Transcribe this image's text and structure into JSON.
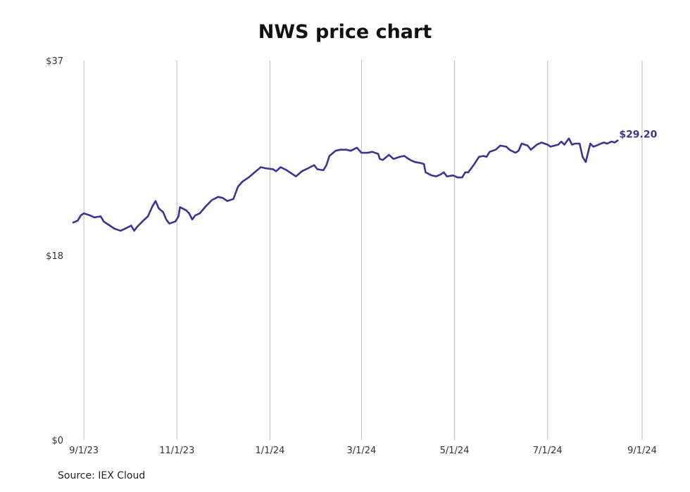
{
  "chart_data": {
    "type": "line",
    "title": "NWS price chart",
    "source": "Source: IEX Cloud",
    "xlabel": "",
    "ylabel": "",
    "ylim": [
      0,
      37
    ],
    "xlim": [
      "2023-08-25",
      "2024-09-07"
    ],
    "y_ticks": [
      0,
      18,
      37
    ],
    "y_tick_labels": [
      "$0",
      "$18",
      "$37"
    ],
    "x_ticks": [
      "2023-09-01",
      "2023-11-01",
      "2024-01-01",
      "2024-03-01",
      "2024-05-01",
      "2024-07-01",
      "2024-09-01"
    ],
    "x_tick_labels": [
      "9/1/23",
      "11/1/23",
      "1/1/24",
      "3/1/24",
      "5/1/24",
      "7/1/24",
      "9/1/24"
    ],
    "grid": "vertical",
    "line_color": "#3a3594",
    "end_label": "$29.20",
    "series": [
      {
        "values": [
          [
            "2023-08-25",
            21.2
          ],
          [
            "2023-08-28",
            21.4
          ],
          [
            "2023-08-30",
            21.9
          ],
          [
            "2023-09-01",
            22.1
          ],
          [
            "2023-09-05",
            21.9
          ],
          [
            "2023-09-08",
            21.7
          ],
          [
            "2023-09-12",
            21.8
          ],
          [
            "2023-09-14",
            21.3
          ],
          [
            "2023-09-18",
            20.9
          ],
          [
            "2023-09-21",
            20.6
          ],
          [
            "2023-09-25",
            20.4
          ],
          [
            "2023-09-28",
            20.6
          ],
          [
            "2023-10-02",
            20.9
          ],
          [
            "2023-10-04",
            20.4
          ],
          [
            "2023-10-06",
            20.8
          ],
          [
            "2023-10-10",
            21.4
          ],
          [
            "2023-10-13",
            21.8
          ],
          [
            "2023-10-16",
            22.8
          ],
          [
            "2023-10-18",
            23.3
          ],
          [
            "2023-10-20",
            22.6
          ],
          [
            "2023-10-23",
            22.2
          ],
          [
            "2023-10-25",
            21.5
          ],
          [
            "2023-10-27",
            21.1
          ],
          [
            "2023-10-31",
            21.3
          ],
          [
            "2023-11-02",
            21.8
          ],
          [
            "2023-11-03",
            22.7
          ],
          [
            "2023-11-07",
            22.4
          ],
          [
            "2023-11-09",
            22.1
          ],
          [
            "2023-11-11",
            21.5
          ],
          [
            "2023-11-13",
            21.9
          ],
          [
            "2023-11-16",
            22.1
          ],
          [
            "2023-11-20",
            22.8
          ],
          [
            "2023-11-24",
            23.4
          ],
          [
            "2023-11-28",
            23.7
          ],
          [
            "2023-12-01",
            23.6
          ],
          [
            "2023-12-04",
            23.3
          ],
          [
            "2023-12-08",
            23.5
          ],
          [
            "2023-12-11",
            24.7
          ],
          [
            "2023-12-14",
            25.2
          ],
          [
            "2023-12-18",
            25.6
          ],
          [
            "2023-12-22",
            26.1
          ],
          [
            "2023-12-26",
            26.6
          ],
          [
            "2023-12-29",
            26.5
          ],
          [
            "2024-01-03",
            26.4
          ],
          [
            "2024-01-05",
            26.2
          ],
          [
            "2024-01-08",
            26.6
          ],
          [
            "2024-01-12",
            26.3
          ],
          [
            "2024-01-16",
            25.9
          ],
          [
            "2024-01-18",
            25.7
          ],
          [
            "2024-01-22",
            26.2
          ],
          [
            "2024-01-26",
            26.5
          ],
          [
            "2024-01-30",
            26.8
          ],
          [
            "2024-02-01",
            26.4
          ],
          [
            "2024-02-05",
            26.3
          ],
          [
            "2024-02-07",
            26.8
          ],
          [
            "2024-02-09",
            27.7
          ],
          [
            "2024-02-13",
            28.2
          ],
          [
            "2024-02-16",
            28.3
          ],
          [
            "2024-02-20",
            28.3
          ],
          [
            "2024-02-23",
            28.2
          ],
          [
            "2024-02-27",
            28.5
          ],
          [
            "2024-03-01",
            28.0
          ],
          [
            "2024-03-05",
            28.0
          ],
          [
            "2024-03-08",
            28.1
          ],
          [
            "2024-03-12",
            27.9
          ],
          [
            "2024-03-13",
            27.4
          ],
          [
            "2024-03-15",
            27.3
          ],
          [
            "2024-03-19",
            27.8
          ],
          [
            "2024-03-22",
            27.4
          ],
          [
            "2024-03-26",
            27.6
          ],
          [
            "2024-03-29",
            27.7
          ],
          [
            "2024-04-02",
            27.3
          ],
          [
            "2024-04-05",
            27.1
          ],
          [
            "2024-04-09",
            27.0
          ],
          [
            "2024-04-11",
            26.9
          ],
          [
            "2024-04-12",
            26.1
          ],
          [
            "2024-04-16",
            25.8
          ],
          [
            "2024-04-19",
            25.7
          ],
          [
            "2024-04-22",
            25.9
          ],
          [
            "2024-04-24",
            26.1
          ],
          [
            "2024-04-26",
            25.7
          ],
          [
            "2024-04-30",
            25.8
          ],
          [
            "2024-05-03",
            25.6
          ],
          [
            "2024-05-06",
            25.6
          ],
          [
            "2024-05-08",
            26.1
          ],
          [
            "2024-05-10",
            26.1
          ],
          [
            "2024-05-14",
            26.9
          ],
          [
            "2024-05-17",
            27.6
          ],
          [
            "2024-05-20",
            27.7
          ],
          [
            "2024-05-22",
            27.6
          ],
          [
            "2024-05-24",
            28.1
          ],
          [
            "2024-05-28",
            28.3
          ],
          [
            "2024-05-31",
            28.7
          ],
          [
            "2024-06-04",
            28.6
          ],
          [
            "2024-06-06",
            28.3
          ],
          [
            "2024-06-10",
            28.0
          ],
          [
            "2024-06-12",
            28.2
          ],
          [
            "2024-06-14",
            28.9
          ],
          [
            "2024-06-18",
            28.7
          ],
          [
            "2024-06-20",
            28.3
          ],
          [
            "2024-06-24",
            28.8
          ],
          [
            "2024-06-27",
            29.0
          ],
          [
            "2024-07-01",
            28.8
          ],
          [
            "2024-07-03",
            28.6
          ],
          [
            "2024-07-08",
            28.8
          ],
          [
            "2024-07-10",
            29.1
          ],
          [
            "2024-07-12",
            28.8
          ],
          [
            "2024-07-15",
            29.4
          ],
          [
            "2024-07-17",
            28.8
          ],
          [
            "2024-07-19",
            28.9
          ],
          [
            "2024-07-22",
            28.9
          ],
          [
            "2024-07-24",
            27.6
          ],
          [
            "2024-07-26",
            27.1
          ],
          [
            "2024-07-29",
            28.9
          ],
          [
            "2024-07-31",
            28.6
          ],
          [
            "2024-08-02",
            28.7
          ],
          [
            "2024-08-05",
            28.9
          ],
          [
            "2024-08-07",
            29.0
          ],
          [
            "2024-08-09",
            28.9
          ],
          [
            "2024-08-12",
            29.1
          ],
          [
            "2024-08-14",
            29.0
          ],
          [
            "2024-08-16",
            29.2
          ]
        ]
      }
    ]
  }
}
